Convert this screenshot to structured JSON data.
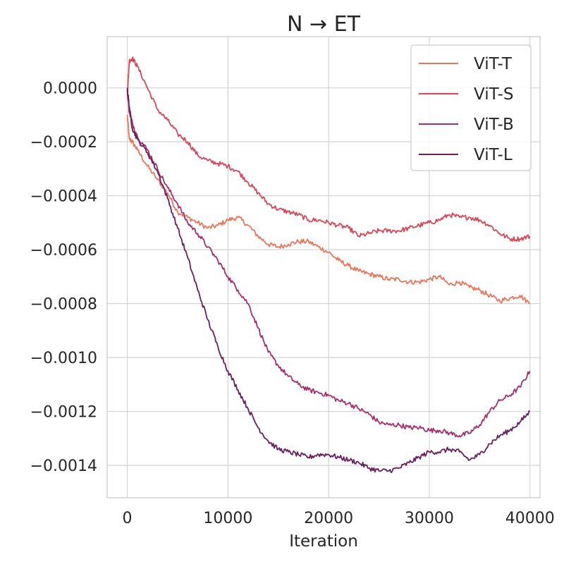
{
  "chart_data": {
    "type": "line",
    "title": "N → ET",
    "xlabel": "Iteration",
    "ylabel": "",
    "xlim": [
      -2000,
      41000
    ],
    "ylim": [
      -0.00152,
      0.00019
    ],
    "xticks": [
      0,
      10000,
      20000,
      30000,
      40000
    ],
    "xtick_labels": [
      "0",
      "10000",
      "20000",
      "30000",
      "40000"
    ],
    "yticks": [
      0.0,
      -0.0002,
      -0.0004,
      -0.0006,
      -0.0008,
      -0.001,
      -0.0012,
      -0.0014
    ],
    "ytick_labels": [
      "0.0000",
      "−0.0002",
      "−0.0004",
      "−0.0006",
      "−0.0008",
      "−0.0010",
      "−0.0012",
      "−0.0014"
    ],
    "grid": true,
    "legend_position": "top-right",
    "x": [
      0,
      200,
      500,
      1000,
      2000,
      3000,
      4000,
      5000,
      6000,
      7000,
      8000,
      9000,
      10000,
      11000,
      12000,
      13000,
      14000,
      15000,
      16000,
      17000,
      18000,
      19000,
      20000,
      21000,
      22000,
      23000,
      24000,
      25000,
      26000,
      27000,
      28000,
      29000,
      30000,
      31000,
      32000,
      33000,
      34000,
      35000,
      36000,
      37000,
      38000,
      39000,
      40000
    ],
    "series": [
      {
        "name": "ViT-T",
        "color": "#e8765a",
        "values": [
          -0.0001,
          -0.00019,
          -0.0002,
          -0.00023,
          -0.00029,
          -0.00034,
          -0.00039,
          -0.00046,
          -0.00048,
          -0.0005,
          -0.00052,
          -0.00051,
          -0.00049,
          -0.00048,
          -0.00051,
          -0.00055,
          -0.00058,
          -0.00059,
          -0.00058,
          -0.00057,
          -0.00057,
          -0.00059,
          -0.00061,
          -0.00064,
          -0.00066,
          -0.00068,
          -0.00069,
          -0.0007,
          -0.00071,
          -0.00071,
          -0.00072,
          -0.00072,
          -0.00071,
          -0.0007,
          -0.00073,
          -0.00072,
          -0.00074,
          -0.00075,
          -0.00077,
          -0.00079,
          -0.00078,
          -0.00077,
          -0.0008
        ]
      },
      {
        "name": "ViT-S",
        "color": "#d5475a",
        "values": [
          -3e-05,
          0.0001,
          0.00011,
          8e-05,
          0.0,
          -8e-05,
          -0.00012,
          -0.00017,
          -0.0002,
          -0.00025,
          -0.00027,
          -0.00028,
          -0.00029,
          -0.00031,
          -0.00035,
          -0.00039,
          -0.00043,
          -0.00045,
          -0.00046,
          -0.00047,
          -0.00049,
          -0.00049,
          -0.0005,
          -0.00051,
          -0.00052,
          -0.00055,
          -0.00054,
          -0.00053,
          -0.00053,
          -0.00053,
          -0.00052,
          -0.00051,
          -0.0005,
          -0.00049,
          -0.00047,
          -0.00048,
          -0.00048,
          -0.00049,
          -0.00051,
          -0.00054,
          -0.00056,
          -0.00056,
          -0.00055
        ]
      },
      {
        "name": "ViT-B",
        "color": "#a62f6b",
        "values": [
          -1e-05,
          -9e-05,
          -0.00013,
          -0.00018,
          -0.00023,
          -0.0003,
          -0.00037,
          -0.00043,
          -0.0005,
          -0.00054,
          -0.00059,
          -0.00064,
          -0.0007,
          -0.00075,
          -0.0008,
          -0.00089,
          -0.00098,
          -0.00103,
          -0.00107,
          -0.0011,
          -0.00112,
          -0.00113,
          -0.00114,
          -0.00116,
          -0.00117,
          -0.00119,
          -0.00121,
          -0.00124,
          -0.00125,
          -0.00125,
          -0.00126,
          -0.00126,
          -0.00127,
          -0.00127,
          -0.00128,
          -0.00129,
          -0.00128,
          -0.00125,
          -0.0012,
          -0.00116,
          -0.00114,
          -0.00111,
          -0.00105
        ]
      },
      {
        "name": "ViT-L",
        "color": "#6a1f5e",
        "values": [
          0.0,
          -7e-05,
          -0.00015,
          -0.00019,
          -0.00024,
          -0.00031,
          -0.00041,
          -0.00052,
          -0.00063,
          -0.00075,
          -0.00086,
          -0.00096,
          -0.00105,
          -0.00112,
          -0.00119,
          -0.00126,
          -0.00131,
          -0.00134,
          -0.00135,
          -0.00136,
          -0.00137,
          -0.00136,
          -0.00136,
          -0.00137,
          -0.00138,
          -0.00139,
          -0.00141,
          -0.00142,
          -0.00142,
          -0.00141,
          -0.00139,
          -0.00137,
          -0.00135,
          -0.00135,
          -0.00134,
          -0.00135,
          -0.00138,
          -0.00136,
          -0.00132,
          -0.00129,
          -0.00127,
          -0.00124,
          -0.0012
        ]
      }
    ]
  }
}
